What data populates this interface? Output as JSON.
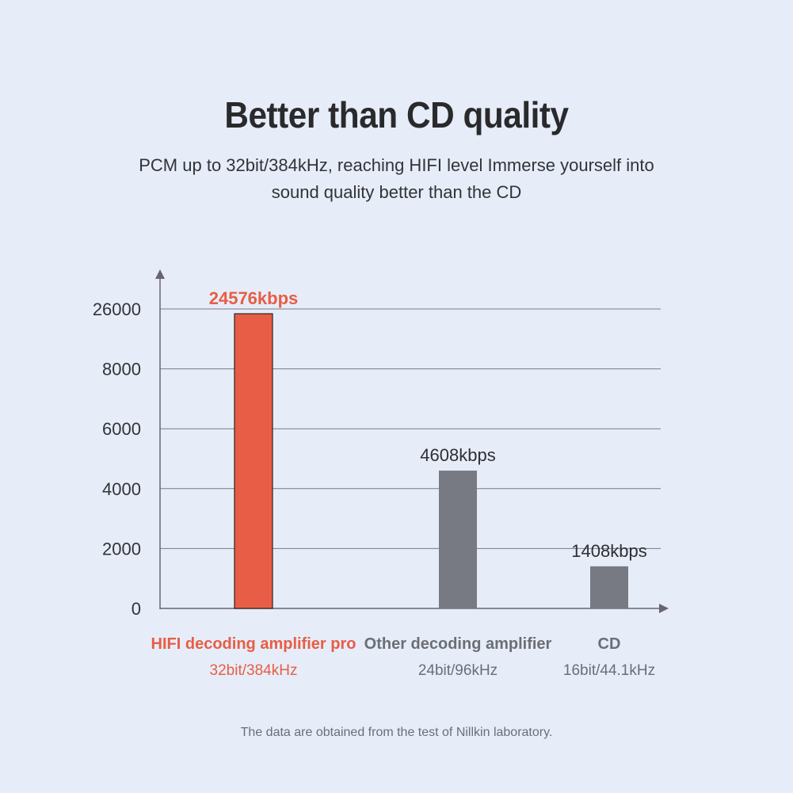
{
  "title": "Better than CD quality",
  "subtitle": "PCM up to 32bit/384kHz, reaching HIFI level Immerse yourself into sound quality better than the CD",
  "footnote": "The data are obtained from the test of Nillkin laboratory.",
  "colors": {
    "highlight": "#e85d45",
    "neutral": "#777a82",
    "axis": "#6a6470",
    "grid": "#7c7a88",
    "background": "#e6edf8"
  },
  "chart_data": {
    "type": "bar",
    "y_tick_labels": [
      "0",
      "2000",
      "4000",
      "6000",
      "8000",
      "26000"
    ],
    "y_scale": "broken (top segment 8000 to 26000)",
    "grid": true,
    "bars": [
      {
        "category": "HIFI decoding amplifier pro",
        "sublabel": "32bit/384kHz",
        "value": 24576,
        "value_label": "24576kbps",
        "color": "#e85d45",
        "highlight": true
      },
      {
        "category": "Other decoding amplifier",
        "sublabel": "24bit/96kHz",
        "value": 4608,
        "value_label": "4608kbps",
        "color": "#777a82",
        "highlight": false
      },
      {
        "category": "CD",
        "sublabel": "16bit/44.1kHz",
        "value": 1408,
        "value_label": "1408kbps",
        "color": "#777a82",
        "highlight": false
      }
    ]
  }
}
